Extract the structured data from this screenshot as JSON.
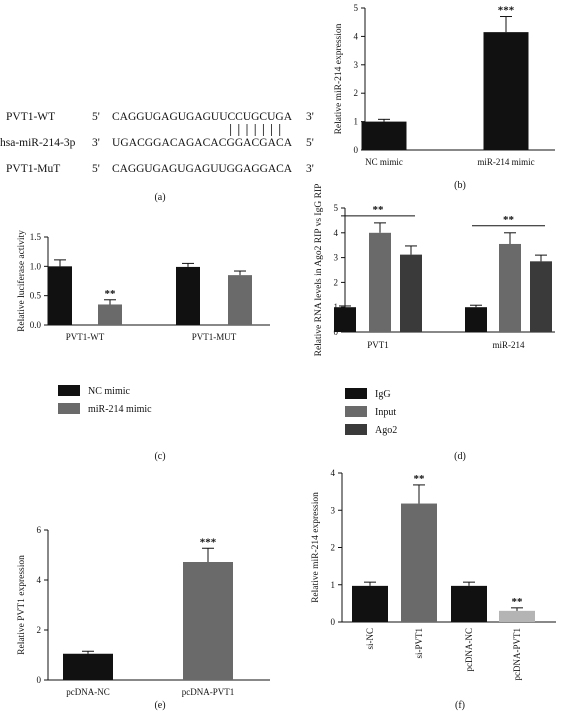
{
  "panel_a": {
    "rows": [
      {
        "name": "PVT1-WT",
        "p5": "5'",
        "seq": "CAGGUGAGUGAGUUCCUGCUGA",
        "p3": "3'"
      },
      {
        "name": "hsa-miR-214-3p",
        "p5": "3'",
        "seq": "UGACGGACAGACACGGACGACA",
        "p3": "5'"
      },
      {
        "name": "PVT1-MuT",
        "p5": "5'",
        "seq": "CAGGUGAGUGAGUUGGAGGACA",
        "p3": "3'"
      }
    ],
    "pairing_lines": 7,
    "caption": "(a)"
  },
  "chart_data": [
    {
      "id": "b",
      "caption": "(b)",
      "type": "bar",
      "categories": [
        "NC mimic",
        "miR-214 mimic"
      ],
      "values": [
        1.0,
        4.15
      ],
      "errors": [
        0.08,
        0.55
      ],
      "colors": [
        "#111111",
        "#111111"
      ],
      "ylabel": "Relative miR-214 expression",
      "ylim": [
        0,
        5
      ],
      "yticks": [
        "0",
        "1",
        "2",
        "3",
        "4",
        "5"
      ],
      "annotations": [
        {
          "bar": 1,
          "text": "***"
        }
      ]
    },
    {
      "id": "c",
      "caption": "(c)",
      "type": "bar",
      "categories": [
        "PVT1-WT",
        "PVT1-MUT"
      ],
      "series": [
        {
          "name": "NC mimic",
          "color": "#111111",
          "values": [
            1.0,
            0.99
          ],
          "errors": [
            0.11,
            0.06
          ]
        },
        {
          "name": "miR-214 mimic",
          "color": "#6a6a6a",
          "values": [
            0.35,
            0.85
          ],
          "errors": [
            0.08,
            0.07
          ]
        }
      ],
      "ylabel": "Relative luciferase activity",
      "ylim": [
        0,
        1.5
      ],
      "yticks": [
        "0.0",
        "0.5",
        "1.0",
        "1.5"
      ],
      "annotations": [
        {
          "series": 1,
          "category": 0,
          "text": "**"
        }
      ]
    },
    {
      "id": "d",
      "caption": "(d)",
      "type": "bar",
      "categories": [
        "PVT1",
        "miR-214"
      ],
      "series": [
        {
          "name": "IgG",
          "color": "#111111",
          "values": [
            1.0,
            1.0
          ],
          "errors": [
            0.05,
            0.08
          ]
        },
        {
          "name": "Input",
          "color": "#6a6a6a",
          "values": [
            4.0,
            3.55
          ],
          "errors": [
            0.4,
            0.45
          ]
        },
        {
          "name": "Ago2",
          "color": "#3a3a3a",
          "values": [
            3.12,
            2.85
          ],
          "errors": [
            0.35,
            0.25
          ]
        }
      ],
      "ylabel": "Relative RNA levels in Ago2 RIP vs IgG RIP",
      "ylim": [
        0,
        5
      ],
      "yticks": [
        "0",
        "1",
        "2",
        "3",
        "4",
        "5"
      ],
      "annotations": [
        {
          "category": 0,
          "text": "**"
        },
        {
          "category": 1,
          "text": "**"
        }
      ]
    },
    {
      "id": "e",
      "caption": "(e)",
      "type": "bar",
      "categories": [
        "pcDNA-NC",
        "pcDNA-PVT1"
      ],
      "values": [
        1.05,
        4.72
      ],
      "errors": [
        0.1,
        0.55
      ],
      "colors": [
        "#111111",
        "#6a6a6a"
      ],
      "ylabel": "Relative PVT1 expression",
      "ylim": [
        0,
        6
      ],
      "yticks": [
        "0",
        "2",
        "4",
        "6"
      ],
      "annotations": [
        {
          "bar": 1,
          "text": "***"
        }
      ]
    },
    {
      "id": "f",
      "caption": "(f)",
      "type": "bar",
      "categories": [
        "si-NC",
        "si-PVT1",
        "pcDNA-NC",
        "pcDNA-PVT1"
      ],
      "values": [
        0.97,
        3.18,
        0.97,
        0.3
      ],
      "errors": [
        0.1,
        0.5,
        0.1,
        0.08
      ],
      "colors": [
        "#111111",
        "#6a6a6a",
        "#111111",
        "#b4b4b4"
      ],
      "ylabel": "Relative miR-214 expression",
      "ylim": [
        0,
        4
      ],
      "yticks": [
        "0",
        "1",
        "2",
        "3",
        "4"
      ],
      "annotations": [
        {
          "bar": 1,
          "text": "**"
        },
        {
          "bar": 3,
          "text": "**"
        }
      ]
    }
  ]
}
